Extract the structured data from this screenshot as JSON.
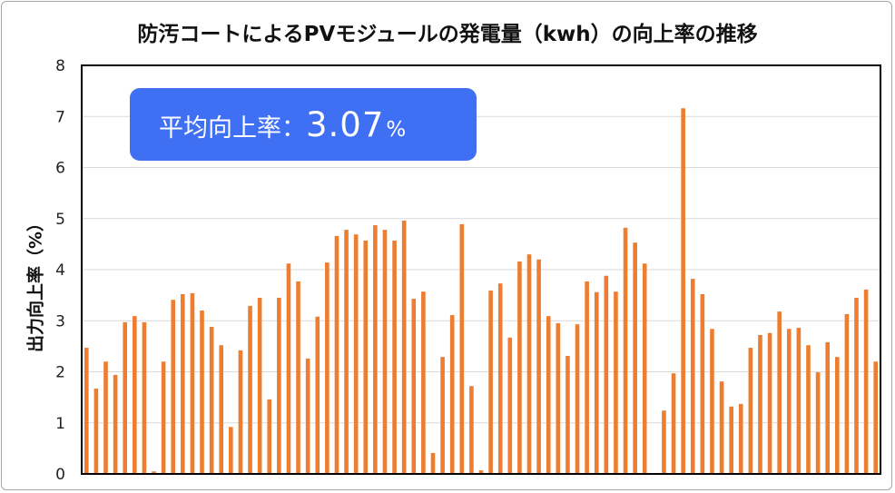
{
  "chart_data": {
    "type": "bar",
    "title": "防汚コートによるPVモジュールの発電量（kwh）の向上率の推移",
    "xlabel": "",
    "ylabel": "出力向上率（%）",
    "ylim": [
      0,
      8
    ],
    "yticks": [
      0,
      1,
      2,
      3,
      4,
      5,
      6,
      7,
      8
    ],
    "grid": true,
    "values": [
      2.47,
      1.67,
      2.2,
      1.94,
      2.97,
      3.09,
      2.97,
      0.05,
      2.2,
      3.41,
      3.52,
      3.54,
      3.2,
      2.88,
      2.52,
      0.92,
      2.42,
      3.29,
      3.45,
      1.46,
      3.45,
      4.12,
      3.77,
      2.26,
      3.08,
      4.14,
      4.66,
      4.78,
      4.69,
      4.57,
      4.87,
      4.78,
      4.57,
      4.96,
      3.43,
      3.57,
      0.41,
      2.29,
      3.11,
      4.89,
      1.72,
      0.07,
      3.59,
      3.73,
      2.67,
      4.16,
      4.3,
      4.2,
      3.09,
      2.95,
      2.31,
      2.93,
      3.77,
      3.56,
      3.88,
      3.57,
      4.82,
      4.53,
      4.12,
      0.0,
      1.24,
      1.97,
      7.16,
      3.82,
      3.52,
      2.84,
      1.81,
      1.32,
      1.37,
      2.47,
      2.72,
      2.76,
      3.18,
      2.84,
      2.86,
      2.52,
      1.99,
      2.58,
      2.29,
      3.13,
      3.45,
      3.61,
      2.2
    ],
    "annotation": {
      "label": "平均向上率：",
      "value": "3.07",
      "unit": "%"
    },
    "colors": {
      "bar": "#ED7D31",
      "grid": "#D9D9D9",
      "frame": "#000000",
      "annotation_bg": "#3F6FF3",
      "annotation_text": "#FFFFFF"
    }
  }
}
